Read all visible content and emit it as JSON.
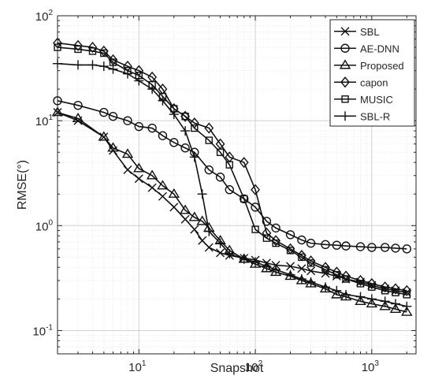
{
  "chart_data": {
    "type": "line",
    "xlabel": "Snapshot",
    "ylabel": "RMSE(°)",
    "x_scale": "log",
    "y_scale": "log",
    "xlim": [
      2,
      2400
    ],
    "ylim": [
      0.06,
      100
    ],
    "x_ticks": [
      {
        "value": 10,
        "base": "10",
        "exp": "1"
      },
      {
        "value": 100,
        "base": "10",
        "exp": "2"
      },
      {
        "value": 1000,
        "base": "10",
        "exp": "3"
      }
    ],
    "y_ticks": [
      {
        "value": 0.1,
        "base": "10",
        "exp": "-1"
      },
      {
        "value": 1,
        "base": "10",
        "exp": "0"
      },
      {
        "value": 10,
        "base": "10",
        "exp": "1"
      },
      {
        "value": 100,
        "base": "10",
        "exp": "2"
      }
    ],
    "grid": true,
    "legend_position": "top-right",
    "series": [
      {
        "name": "SBL",
        "marker": "x",
        "x": [
          2,
          3,
          5,
          6,
          8,
          10,
          13,
          16,
          20,
          25,
          30,
          35,
          40,
          50,
          60,
          80,
          100,
          125,
          150,
          200,
          250,
          300,
          400,
          500,
          600,
          800,
          1000,
          1300,
          1600,
          2000
        ],
        "y": [
          12,
          10,
          7,
          5.2,
          3.4,
          2.8,
          2.3,
          1.9,
          1.5,
          1.15,
          0.92,
          0.72,
          0.62,
          0.55,
          0.52,
          0.49,
          0.47,
          0.44,
          0.42,
          0.41,
          0.39,
          0.37,
          0.35,
          0.33,
          0.31,
          0.29,
          0.27,
          0.25,
          0.24,
          0.23
        ]
      },
      {
        "name": "AE-DNN",
        "marker": "circle",
        "x": [
          2,
          3,
          5,
          6,
          8,
          10,
          13,
          16,
          20,
          25,
          30,
          40,
          50,
          60,
          80,
          100,
          125,
          150,
          200,
          250,
          300,
          400,
          500,
          600,
          800,
          1000,
          1300,
          1600,
          2000
        ],
        "y": [
          15.5,
          14,
          12,
          11,
          10,
          8.8,
          8.5,
          7.2,
          6.2,
          5.5,
          5,
          3.4,
          2.9,
          2.2,
          1.8,
          1.5,
          1.1,
          0.95,
          0.82,
          0.73,
          0.68,
          0.66,
          0.65,
          0.64,
          0.63,
          0.62,
          0.62,
          0.61,
          0.6
        ]
      },
      {
        "name": "Proposed",
        "marker": "triangle",
        "x": [
          2,
          3,
          5,
          6,
          8,
          10,
          13,
          16,
          20,
          25,
          30,
          35,
          40,
          50,
          60,
          80,
          100,
          125,
          150,
          200,
          250,
          300,
          400,
          500,
          600,
          800,
          1000,
          1300,
          1600,
          2000
        ],
        "y": [
          12,
          10.5,
          7,
          5.5,
          4.8,
          3.5,
          3,
          2.4,
          2,
          1.4,
          1.2,
          1.1,
          0.95,
          0.72,
          0.58,
          0.48,
          0.43,
          0.39,
          0.36,
          0.33,
          0.3,
          0.28,
          0.25,
          0.22,
          0.21,
          0.19,
          0.18,
          0.17,
          0.16,
          0.15
        ]
      },
      {
        "name": "capon",
        "marker": "diamond",
        "x": [
          2,
          3,
          4,
          5,
          6,
          8,
          10,
          13,
          16,
          20,
          25,
          30,
          40,
          50,
          60,
          80,
          100,
          125,
          150,
          200,
          250,
          300,
          400,
          500,
          600,
          800,
          1000,
          1300,
          1600,
          2000
        ],
        "y": [
          55,
          52,
          50,
          46,
          38,
          33,
          30,
          26,
          20,
          13,
          11,
          9.5,
          8.5,
          6,
          4.5,
          4,
          2.2,
          0.85,
          0.72,
          0.6,
          0.52,
          0.46,
          0.4,
          0.36,
          0.33,
          0.3,
          0.28,
          0.26,
          0.25,
          0.24
        ]
      },
      {
        "name": "MUSIC",
        "marker": "square",
        "x": [
          2,
          3,
          4,
          5,
          6,
          8,
          10,
          13,
          16,
          20,
          25,
          30,
          40,
          50,
          60,
          80,
          100,
          125,
          150,
          200,
          250,
          300,
          400,
          500,
          600,
          800,
          1000,
          1300,
          1600,
          2000
        ],
        "y": [
          50,
          48,
          46,
          44,
          36,
          30,
          27,
          22,
          17,
          13,
          11,
          8.5,
          6.5,
          5,
          3.8,
          1.8,
          0.92,
          0.76,
          0.68,
          0.58,
          0.5,
          0.44,
          0.38,
          0.34,
          0.31,
          0.28,
          0.26,
          0.24,
          0.23,
          0.22
        ]
      },
      {
        "name": "SBL-R",
        "marker": "plus",
        "x": [
          2,
          3,
          4,
          5,
          6,
          8,
          10,
          13,
          16,
          20,
          25,
          30,
          35,
          40,
          50,
          60,
          80,
          100,
          125,
          150,
          200,
          250,
          300,
          400,
          500,
          600,
          800,
          1000,
          1300,
          1600,
          2000
        ],
        "y": [
          35,
          34,
          34,
          33,
          31,
          28,
          24,
          20,
          15.5,
          11.5,
          8,
          4.5,
          2,
          0.88,
          0.68,
          0.54,
          0.48,
          0.45,
          0.41,
          0.38,
          0.34,
          0.31,
          0.29,
          0.26,
          0.24,
          0.22,
          0.21,
          0.2,
          0.19,
          0.18,
          0.17
        ]
      }
    ]
  }
}
